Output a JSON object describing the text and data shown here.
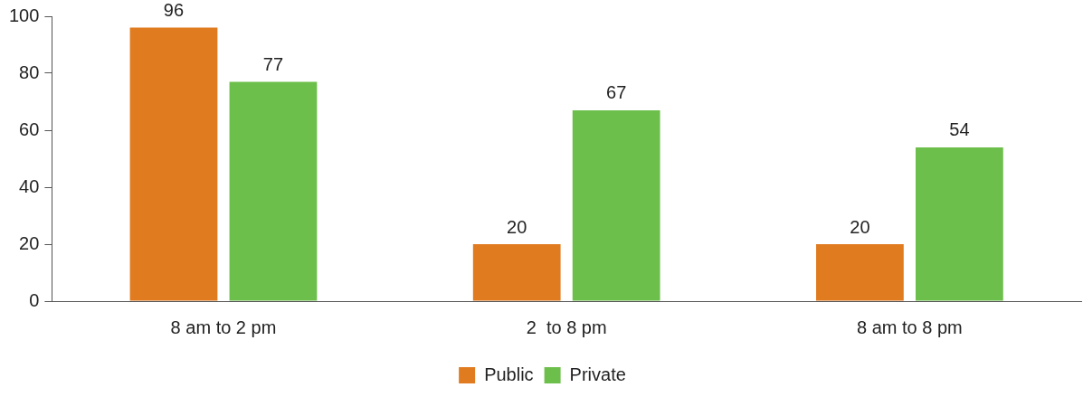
{
  "chart_data": {
    "type": "bar",
    "categories": [
      "8 am to 2 pm",
      "2  to 8 pm",
      "8 am to 8 pm"
    ],
    "series": [
      {
        "name": "Public",
        "color": "#e07b20",
        "values": [
          96,
          20,
          20
        ]
      },
      {
        "name": "Private",
        "color": "#6dbf4b",
        "values": [
          77,
          67,
          54
        ]
      }
    ],
    "ylim": [
      0,
      100
    ],
    "yticks": [
      0,
      20,
      40,
      60,
      80,
      100
    ],
    "grid": false,
    "legend": "bottom",
    "data_labels": true
  }
}
